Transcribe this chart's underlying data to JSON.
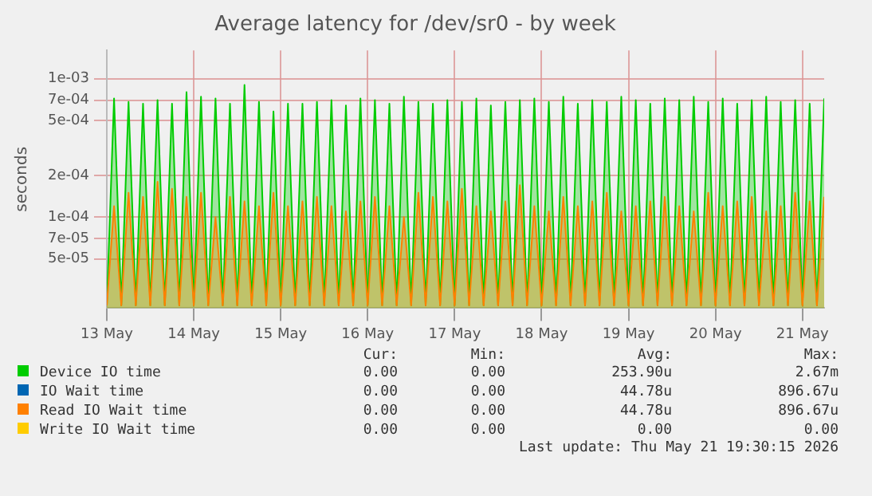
{
  "chart_data": {
    "type": "area",
    "title": "Average latency for /dev/sr0 - by week",
    "ylabel": "seconds",
    "log": "y",
    "grid": true,
    "legend": "bottom",
    "marker": "none",
    "line_style": "solid",
    "x": [
      "2026-05-13T00:00",
      "2026-05-13T02:00",
      "2026-05-13T04:00",
      "2026-05-13T06:00",
      "2026-05-13T08:00",
      "2026-05-13T10:00",
      "2026-05-13T12:00",
      "2026-05-13T14:00",
      "2026-05-13T16:00",
      "2026-05-13T18:00",
      "2026-05-13T20:00",
      "2026-05-13T22:00",
      "2026-05-14T00:00",
      "2026-05-14T02:00",
      "2026-05-14T04:00",
      "2026-05-14T06:00",
      "2026-05-14T08:00",
      "2026-05-14T10:00",
      "2026-05-14T12:00",
      "2026-05-14T14:00",
      "2026-05-14T16:00",
      "2026-05-14T18:00",
      "2026-05-14T20:00",
      "2026-05-14T22:00",
      "2026-05-15T00:00",
      "2026-05-15T02:00",
      "2026-05-15T04:00",
      "2026-05-15T06:00",
      "2026-05-15T08:00",
      "2026-05-15T10:00",
      "2026-05-15T12:00",
      "2026-05-15T14:00",
      "2026-05-15T16:00",
      "2026-05-15T18:00",
      "2026-05-15T20:00",
      "2026-05-15T22:00",
      "2026-05-16T00:00",
      "2026-05-16T02:00",
      "2026-05-16T04:00",
      "2026-05-16T06:00",
      "2026-05-16T08:00",
      "2026-05-16T10:00",
      "2026-05-16T12:00",
      "2026-05-16T14:00",
      "2026-05-16T16:00",
      "2026-05-16T18:00",
      "2026-05-16T20:00",
      "2026-05-16T22:00",
      "2026-05-17T00:00",
      "2026-05-17T02:00",
      "2026-05-17T04:00",
      "2026-05-17T06:00",
      "2026-05-17T08:00",
      "2026-05-17T10:00",
      "2026-05-17T12:00",
      "2026-05-17T14:00",
      "2026-05-17T16:00",
      "2026-05-17T18:00",
      "2026-05-17T20:00",
      "2026-05-17T22:00",
      "2026-05-18T00:00",
      "2026-05-18T02:00",
      "2026-05-18T04:00",
      "2026-05-18T06:00",
      "2026-05-18T08:00",
      "2026-05-18T10:00",
      "2026-05-18T12:00",
      "2026-05-18T14:00",
      "2026-05-18T16:00",
      "2026-05-18T18:00",
      "2026-05-18T20:00",
      "2026-05-18T22:00",
      "2026-05-19T00:00",
      "2026-05-19T02:00",
      "2026-05-19T04:00",
      "2026-05-19T06:00",
      "2026-05-19T08:00",
      "2026-05-19T10:00",
      "2026-05-19T12:00",
      "2026-05-19T14:00",
      "2026-05-19T16:00",
      "2026-05-19T18:00",
      "2026-05-19T20:00",
      "2026-05-19T22:00",
      "2026-05-20T00:00",
      "2026-05-20T02:00",
      "2026-05-20T04:00",
      "2026-05-20T06:00",
      "2026-05-20T08:00",
      "2026-05-20T10:00",
      "2026-05-20T12:00",
      "2026-05-20T14:00",
      "2026-05-20T16:00",
      "2026-05-20T18:00",
      "2026-05-20T20:00",
      "2026-05-20T22:00",
      "2026-05-21T00:00",
      "2026-05-21T02:00",
      "2026-05-21T04:00",
      "2026-05-21T06:00"
    ],
    "xlim": [
      "2026-05-13T00:00",
      "2026-05-21T06:00"
    ],
    "xticks": [
      {
        "value": "2026-05-13",
        "label": "13 May"
      },
      {
        "value": "2026-05-14",
        "label": "14 May"
      },
      {
        "value": "2026-05-15",
        "label": "15 May"
      },
      {
        "value": "2026-05-16",
        "label": "16 May"
      },
      {
        "value": "2026-05-17",
        "label": "17 May"
      },
      {
        "value": "2026-05-18",
        "label": "18 May"
      },
      {
        "value": "2026-05-19",
        "label": "19 May"
      },
      {
        "value": "2026-05-20",
        "label": "20 May"
      },
      {
        "value": "2026-05-21",
        "label": "21 May"
      }
    ],
    "ylim": [
      2.2e-05,
      0.0016
    ],
    "yticks": [
      {
        "value": 5e-05,
        "label": "5e-05"
      },
      {
        "value": 7e-05,
        "label": "7e-05"
      },
      {
        "value": 0.0001,
        "label": "1e-04"
      },
      {
        "value": 0.0002,
        "label": "2e-04"
      },
      {
        "value": 0.0005,
        "label": "5e-04"
      },
      {
        "value": 0.0007,
        "label": "7e-04"
      },
      {
        "value": 0.001,
        "label": "1e-03"
      }
    ],
    "series": [
      {
        "name": "Device IO time",
        "color": "#00cc00",
        "values": [
          2.3e-05,
          0.00072,
          2.3e-05,
          0.00068,
          2.3e-05,
          0.00066,
          2.3e-05,
          0.0007,
          2.3e-05,
          0.00066,
          2.3e-05,
          0.0008,
          2.3e-05,
          0.00074,
          2.3e-05,
          0.00072,
          2.3e-05,
          0.00066,
          2.3e-05,
          0.0009,
          2.3e-05,
          0.00068,
          2.3e-05,
          0.00058,
          2.3e-05,
          0.00066,
          2.3e-05,
          0.00066,
          2.3e-05,
          0.00068,
          2.3e-05,
          0.0007,
          2.3e-05,
          0.00064,
          2.3e-05,
          0.00072,
          2.3e-05,
          0.0007,
          2.3e-05,
          0.00066,
          2.3e-05,
          0.00074,
          2.3e-05,
          0.00068,
          2.3e-05,
          0.00066,
          2.3e-05,
          0.0007,
          2.3e-05,
          0.00068,
          2.3e-05,
          0.00072,
          2.3e-05,
          0.00064,
          2.3e-05,
          0.00068,
          2.3e-05,
          0.0007,
          2.3e-05,
          0.00072,
          2.3e-05,
          0.00068,
          2.3e-05,
          0.00074,
          2.3e-05,
          0.00066,
          2.3e-05,
          0.0007,
          2.3e-05,
          0.00068,
          2.3e-05,
          0.00074,
          2.3e-05,
          0.0007,
          2.3e-05,
          0.00066,
          2.3e-05,
          0.00072,
          2.3e-05,
          0.0007,
          2.3e-05,
          0.00074,
          2.3e-05,
          0.00068,
          2.3e-05,
          0.00072,
          2.3e-05,
          0.00066,
          2.3e-05,
          0.0007,
          2.3e-05,
          0.00074,
          2.3e-05,
          0.00068,
          2.3e-05,
          0.0007,
          2.3e-05,
          0.00066,
          2.3e-05,
          0.00072
        ]
      },
      {
        "name": "IO Wait time",
        "color": "#0066b3",
        "values": [
          null,
          null,
          null,
          null,
          null,
          null,
          null,
          null,
          null,
          null,
          null,
          null,
          null,
          null,
          null,
          null,
          null,
          null,
          null,
          null,
          null,
          null,
          null,
          null,
          null,
          null,
          null,
          null,
          null,
          null,
          null,
          null,
          null,
          null,
          null,
          null,
          null,
          null,
          null,
          null,
          null,
          null,
          null,
          null,
          null,
          null,
          null,
          null,
          null,
          null,
          null,
          null,
          null,
          null,
          null,
          null,
          null,
          null,
          null,
          null,
          null,
          null,
          null,
          null,
          null,
          null,
          null,
          null,
          null,
          null,
          null,
          null,
          null,
          null,
          null,
          null,
          null,
          null,
          null,
          null,
          null,
          null,
          null,
          null,
          null,
          null,
          null,
          null,
          null,
          null,
          null,
          null,
          null,
          null,
          null,
          null,
          null,
          null,
          null,
          null
        ]
      },
      {
        "name": "Read IO Wait time",
        "color": "#ff8000",
        "values": [
          2.3e-05,
          0.00012,
          2.3e-05,
          0.00015,
          2.3e-05,
          0.00014,
          2.3e-05,
          0.00018,
          2.3e-05,
          0.00016,
          2.3e-05,
          0.00014,
          2.3e-05,
          0.00015,
          2.3e-05,
          0.0001,
          2.3e-05,
          0.00014,
          2.3e-05,
          0.00013,
          2.3e-05,
          0.00012,
          2.3e-05,
          0.00015,
          2.3e-05,
          0.00012,
          2.3e-05,
          0.00013,
          2.3e-05,
          0.00014,
          2.3e-05,
          0.00012,
          2.3e-05,
          0.00011,
          2.3e-05,
          0.00013,
          2.3e-05,
          0.00014,
          2.3e-05,
          0.00012,
          2.3e-05,
          0.0001,
          2.3e-05,
          0.00015,
          2.3e-05,
          0.00014,
          2.3e-05,
          0.00013,
          2.3e-05,
          0.00016,
          2.3e-05,
          0.00012,
          2.3e-05,
          0.00011,
          2.3e-05,
          0.00013,
          2.3e-05,
          0.00017,
          2.3e-05,
          0.00012,
          2.3e-05,
          0.00011,
          2.3e-05,
          0.00014,
          2.3e-05,
          0.00012,
          2.3e-05,
          0.00013,
          2.3e-05,
          0.00015,
          2.3e-05,
          0.00011,
          2.3e-05,
          0.00012,
          2.3e-05,
          0.00013,
          2.3e-05,
          0.00014,
          2.3e-05,
          0.00012,
          2.3e-05,
          0.00011,
          2.3e-05,
          0.00015,
          2.3e-05,
          0.00012,
          2.3e-05,
          0.00013,
          2.3e-05,
          0.00014,
          2.3e-05,
          0.00011,
          2.3e-05,
          0.00012,
          2.3e-05,
          0.00015,
          2.3e-05,
          0.00013,
          2.3e-05,
          0.00014
        ]
      },
      {
        "name": "Write IO Wait time",
        "color": "#ffcc00",
        "values": [
          null,
          null,
          null,
          null,
          null,
          null,
          null,
          null,
          null,
          null,
          null,
          null,
          null,
          null,
          null,
          null,
          null,
          null,
          null,
          null,
          null,
          null,
          null,
          null,
          null,
          null,
          null,
          null,
          null,
          null,
          null,
          null,
          null,
          null,
          null,
          null,
          null,
          null,
          null,
          null,
          null,
          null,
          null,
          null,
          null,
          null,
          null,
          null,
          null,
          null,
          null,
          null,
          null,
          null,
          null,
          null,
          null,
          null,
          null,
          null,
          null,
          null,
          null,
          null,
          null,
          null,
          null,
          null,
          null,
          null,
          null,
          null,
          null,
          null,
          null,
          null,
          null,
          null,
          null,
          null,
          null,
          null,
          null,
          null,
          null,
          null,
          null,
          null,
          null,
          null,
          null,
          null,
          null,
          null,
          null,
          null,
          null,
          null,
          null,
          null
        ]
      }
    ],
    "annotations": [
      "Cur:",
      "Min:",
      "Avg:",
      "Max:",
      "0.00",
      "0.00",
      "253.90u",
      "2.67m",
      "0.00",
      "0.00",
      "44.78u",
      "896.67u",
      "0.00",
      "0.00",
      "44.78u",
      "896.67u",
      "0.00",
      "0.00",
      "0.00",
      "0.00",
      "Last update: Thu May 21 19:30:15 2026"
    ]
  }
}
